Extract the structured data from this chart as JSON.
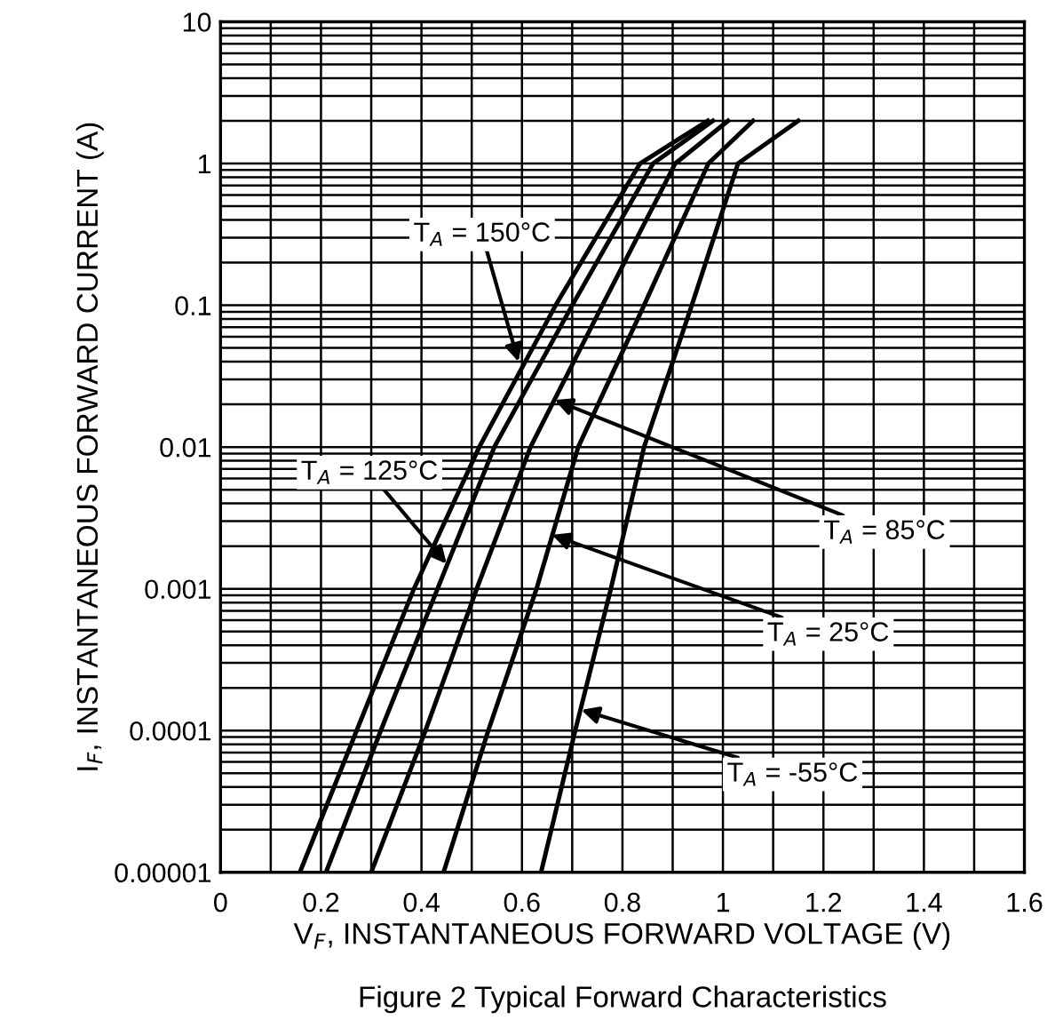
{
  "chart_data": {
    "type": "line",
    "log": "y",
    "xlabel": "V$_{F}$, INSTANTANEOUS FORWARD VOLTAGE (V)",
    "ylabel": "I$_{F}$, INSTANTANEOUS FORWARD CURRENT (A)",
    "xlim": [
      0,
      1.6
    ],
    "ylim": [
      1e-05,
      10
    ],
    "xticks": [
      0,
      {
        "value": 0.1,
        "label": null
      },
      0.2,
      {
        "value": 0.3,
        "label": null
      },
      0.4,
      {
        "value": 0.5,
        "label": null
      },
      0.6,
      {
        "value": 0.7,
        "label": null
      },
      0.8,
      {
        "value": 0.9,
        "label": null
      },
      1,
      {
        "value": 1.1,
        "label": null
      },
      1.2,
      {
        "value": 1.3,
        "label": null
      },
      1.4,
      {
        "value": 1.5,
        "label": null
      },
      1.6
    ],
    "yticks": [
      {
        "value": 1e-05,
        "label": "0.00001"
      },
      0.0001,
      0.001,
      0.01,
      0.1,
      1,
      10
    ],
    "grid": true,
    "marker": "none",
    "line_style": "solid",
    "series": [
      {
        "color": "#000000",
        "x": [
          0.158,
          0.271,
          0.385,
          0.515,
          0.667,
          0.835,
          0.97
        ],
        "values": [
          1e-05,
          0.0001,
          0.001,
          0.01,
          0.1,
          1,
          2
        ]
      },
      {
        "color": "#000000",
        "x": [
          0.21,
          0.319,
          0.432,
          0.545,
          0.7,
          0.861,
          0.98
        ],
        "values": [
          1e-05,
          0.0001,
          0.001,
          0.01,
          0.1,
          1,
          2
        ]
      },
      {
        "color": "#000000",
        "x": [
          0.3,
          0.408,
          0.51,
          0.617,
          0.76,
          0.905,
          1.01
        ],
        "values": [
          1e-05,
          0.0001,
          0.001,
          0.01,
          0.1,
          1,
          2
        ]
      },
      {
        "color": "#000000",
        "x": [
          0.444,
          0.533,
          0.629,
          0.712,
          0.843,
          0.971,
          1.06
        ],
        "values": [
          1e-05,
          0.0001,
          0.001,
          0.01,
          0.1,
          1,
          2
        ]
      },
      {
        "color": "#000000",
        "x": [
          0.638,
          0.706,
          0.777,
          0.843,
          0.938,
          1.03,
          1.15
        ],
        "values": [
          1e-05,
          0.0001,
          0.001,
          0.01,
          0.1,
          1,
          2
        ]
      }
    ],
    "annotations": [
      {
        "text": "T$_{A}$ = 150°C",
        "x": 0.593,
        "y": 0.04
      },
      {
        "text": "T$_{A}$ = 125°C",
        "x": 0.45,
        "y": 0.0015
      },
      {
        "text": "T$_{A}$ = 85°C",
        "x": 0.665,
        "y": 0.0215
      },
      {
        "text": "T$_{A}$ = 25°C",
        "x": 0.66,
        "y": 0.0024
      },
      {
        "text": "T$_{A}$ = -55°C",
        "x": 0.718,
        "y": 0.00014
      },
      "Figure 2 Typical Forward Characteristics"
    ]
  }
}
